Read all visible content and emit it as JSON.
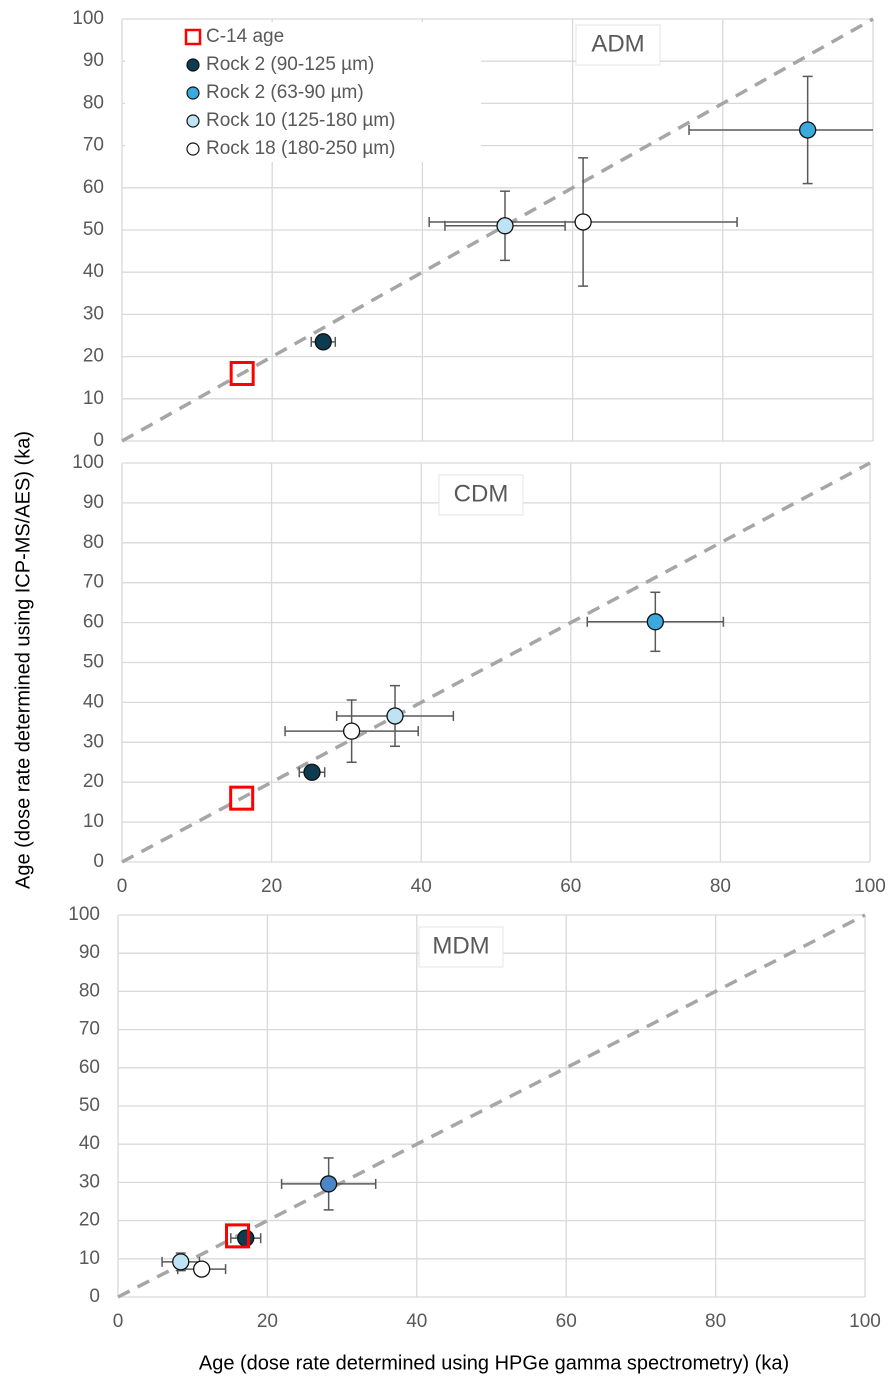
{
  "chart_data": [
    {
      "type": "scatter",
      "label": "ADM",
      "ylabel": "Age (dose rate determined using ICP-MS/AES) (ka)",
      "xlim": [
        0,
        100
      ],
      "ylim": [
        0,
        100
      ],
      "xticks": [
        0,
        20,
        40,
        60,
        80,
        100
      ],
      "yticks": [
        0,
        10,
        20,
        30,
        40,
        50,
        60,
        70,
        80,
        90,
        100
      ],
      "show_xtick_labels": false,
      "grid": true,
      "legend": "upper left",
      "identity_line": true,
      "series": [
        {
          "name": "C-14 age",
          "marker": "square",
          "color": "#ff0000",
          "x": [
            16
          ],
          "values": [
            16
          ]
        },
        {
          "name": "Rock 2 (90-125 µm)",
          "marker": "circle",
          "color": "#0d3b4f",
          "x": [
            26.8
          ],
          "values": [
            23.5
          ],
          "xerr": [
            1.6
          ],
          "yerr": [
            1
          ]
        },
        {
          "name": "Rock 2 (63-90 µm)",
          "marker": "circle",
          "color": "#3aa9dc",
          "x": [
            91.3
          ],
          "values": [
            73.7
          ],
          "xerr": [
            15.8
          ],
          "yerr": [
            12.7
          ]
        },
        {
          "name": "Rock 10 (125-180 µm)",
          "marker": "circle",
          "color": "#bde3f5",
          "x": [
            51
          ],
          "values": [
            51
          ],
          "xerr": [
            8
          ],
          "yerr": [
            8.2
          ]
        },
        {
          "name": "Rock 18 (180-250 µm)",
          "marker": "circle",
          "color": "#ffffff",
          "x": [
            61.4
          ],
          "values": [
            51.9
          ],
          "xerr": [
            20.5
          ],
          "yerr": [
            15.2
          ]
        }
      ]
    },
    {
      "type": "scatter",
      "label": "CDM",
      "xlim": [
        0,
        100
      ],
      "ylim": [
        0,
        100
      ],
      "xticks": [
        0,
        20,
        40,
        60,
        80,
        100
      ],
      "yticks": [
        0,
        10,
        20,
        30,
        40,
        50,
        60,
        70,
        80,
        90,
        100
      ],
      "show_xtick_labels": true,
      "grid": true,
      "identity_line": true,
      "series": [
        {
          "name": "C-14 age",
          "marker": "square",
          "color": "#ff0000",
          "x": [
            16
          ],
          "values": [
            16
          ]
        },
        {
          "name": "Rock 2 (90-125 µm)",
          "marker": "circle",
          "color": "#0d3b4f",
          "x": [
            25.4
          ],
          "values": [
            22.5
          ],
          "xerr": [
            1.7
          ],
          "yerr": [
            1
          ]
        },
        {
          "name": "Rock 2 (63-90 µm)",
          "marker": "circle",
          "color": "#3aa9dc",
          "x": [
            71.3
          ],
          "values": [
            60.2
          ],
          "xerr": [
            9.1
          ],
          "yerr": [
            7.4
          ]
        },
        {
          "name": "Rock 10 (125-180 µm)",
          "marker": "circle",
          "color": "#bde3f5",
          "x": [
            36.5
          ],
          "values": [
            36.6
          ],
          "xerr": [
            7.8
          ],
          "yerr": [
            7.6
          ]
        },
        {
          "name": "Rock 18 (180-250 µm)",
          "marker": "circle",
          "color": "#ffffff",
          "x": [
            30.7
          ],
          "values": [
            32.8
          ],
          "xerr": [
            8.9
          ],
          "yerr": [
            7.8
          ]
        }
      ]
    },
    {
      "type": "scatter",
      "label": "MDM",
      "xlabel": "Age (dose rate determined using HPGe gamma spectrometry) (ka)",
      "xlim": [
        0,
        100
      ],
      "ylim": [
        0,
        100
      ],
      "xticks": [
        0,
        20,
        40,
        60,
        80,
        100
      ],
      "yticks": [
        0,
        10,
        20,
        30,
        40,
        50,
        60,
        70,
        80,
        90,
        100
      ],
      "show_xtick_labels": true,
      "grid": true,
      "identity_line": true,
      "series": [
        {
          "name": "Rock 2 (90-125 µm)",
          "marker": "circle",
          "color": "#0d3b4f",
          "x": [
            17.1
          ],
          "values": [
            15.4
          ],
          "xerr": [
            2
          ],
          "yerr": [
            1
          ]
        },
        {
          "name": "C-14 age",
          "marker": "square",
          "color": "#ff0000",
          "x": [
            16
          ],
          "values": [
            16
          ]
        },
        {
          "name": "Rock 2 (63-90 µm)",
          "marker": "circle",
          "color": "#4a86c8",
          "x": [
            28.2
          ],
          "values": [
            29.6
          ],
          "xerr": [
            6.3
          ],
          "yerr": [
            6.8
          ]
        },
        {
          "name": "Rock 10 (125-180 µm)",
          "marker": "circle",
          "color": "#bde3f5",
          "x": [
            8.4
          ],
          "values": [
            9.2
          ],
          "xerr": [
            2.5
          ],
          "yerr": [
            2.3
          ]
        },
        {
          "name": "Rock 18 (180-250 µm)",
          "marker": "circle",
          "color": "#ffffff",
          "x": [
            11.2
          ],
          "values": [
            7.3
          ],
          "xerr": [
            3.2
          ],
          "yerr": [
            1.5
          ]
        }
      ]
    }
  ]
}
